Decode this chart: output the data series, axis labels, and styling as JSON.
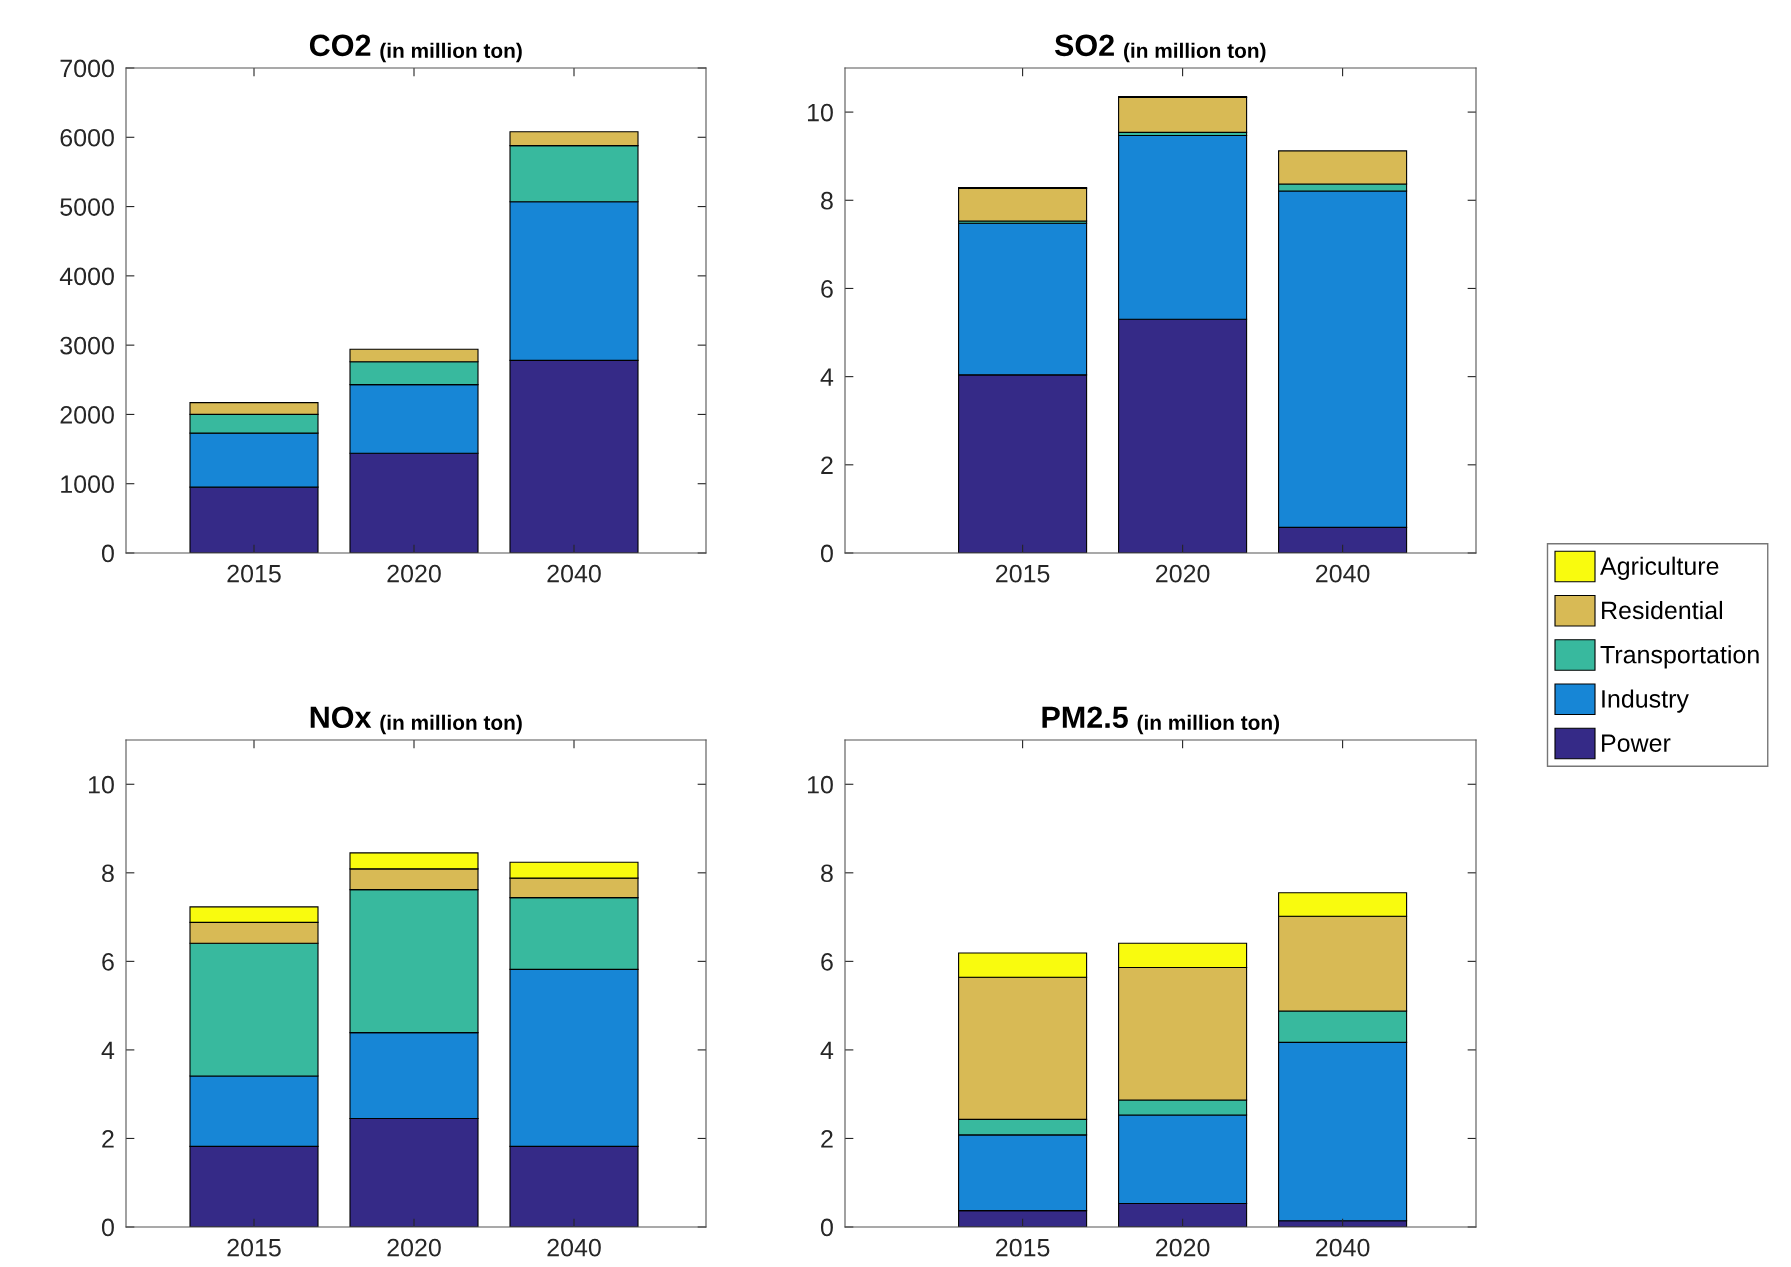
{
  "chart_data": [
    {
      "type": "bar",
      "stacked": true,
      "title": "CO2",
      "subtitle": "(in million ton)",
      "categories": [
        "2015",
        "2020",
        "2040"
      ],
      "ylim": [
        0,
        7000
      ],
      "yticks": [
        0,
        1000,
        2000,
        3000,
        4000,
        5000,
        6000,
        7000
      ],
      "grid": false,
      "legend": "right",
      "series": [
        {
          "name": "Power",
          "color": "#352a87",
          "values": [
            950,
            1440,
            2780
          ]
        },
        {
          "name": "Industry",
          "color": "#1786d6",
          "values": [
            780,
            990,
            2290
          ]
        },
        {
          "name": "Transportation",
          "color": "#38b99e",
          "values": [
            270,
            330,
            810
          ]
        },
        {
          "name": "Residential",
          "color": "#d8ba55",
          "values": [
            170,
            180,
            200
          ]
        },
        {
          "name": "Agriculture",
          "color": "#f9fb0e",
          "values": [
            null,
            null,
            null
          ]
        }
      ]
    },
    {
      "type": "bar",
      "stacked": true,
      "title": "SO2",
      "subtitle": "(in million ton)",
      "categories": [
        "2015",
        "2020",
        "2040"
      ],
      "ylim": [
        0,
        11
      ],
      "yticks": [
        0,
        2,
        4,
        6,
        8,
        10
      ],
      "grid": false,
      "series": [
        {
          "color": "#352a87",
          "values": [
            4.04,
            5.3,
            0.58
          ]
        },
        {
          "color": "#1786d6",
          "values": [
            3.44,
            4.17,
            7.63
          ]
        },
        {
          "color": "#38b99e",
          "values": [
            0.05,
            0.07,
            0.16
          ]
        },
        {
          "color": "#d8ba55",
          "values": [
            0.74,
            0.79,
            0.75
          ]
        },
        {
          "color": "#f9fb0e",
          "values": [
            0.02,
            0.02,
            null
          ]
        }
      ]
    },
    {
      "type": "bar",
      "stacked": true,
      "title": "NOx",
      "subtitle": "(in million ton)",
      "categories": [
        "2015",
        "2020",
        "2040"
      ],
      "ylim": [
        0,
        11
      ],
      "yticks": [
        0,
        2,
        4,
        6,
        8,
        10
      ],
      "grid": false,
      "series": [
        {
          "color": "#352a87",
          "values": [
            1.82,
            2.45,
            1.82
          ]
        },
        {
          "color": "#1786d6",
          "values": [
            1.59,
            1.94,
            4.0
          ]
        },
        {
          "color": "#38b99e",
          "values": [
            3.0,
            3.23,
            1.62
          ]
        },
        {
          "color": "#d8ba55",
          "values": [
            0.47,
            0.47,
            0.44
          ]
        },
        {
          "color": "#f9fb0e",
          "values": [
            0.35,
            0.36,
            0.36
          ]
        }
      ]
    },
    {
      "type": "bar",
      "stacked": true,
      "title": "PM2.5",
      "subtitle": "(in million ton)",
      "categories": [
        "2015",
        "2020",
        "2040"
      ],
      "ylim": [
        0,
        11
      ],
      "yticks": [
        0,
        2,
        4,
        6,
        8,
        10
      ],
      "grid": false,
      "series": [
        {
          "color": "#352a87",
          "values": [
            0.37,
            0.53,
            0.14
          ]
        },
        {
          "color": "#1786d6",
          "values": [
            1.71,
            2.0,
            4.03
          ]
        },
        {
          "color": "#38b99e",
          "values": [
            0.35,
            0.34,
            0.71
          ]
        },
        {
          "color": "#d8ba55",
          "values": [
            3.21,
            2.99,
            2.14
          ]
        },
        {
          "color": "#f9fb0e",
          "values": [
            0.55,
            0.55,
            0.53
          ]
        }
      ]
    }
  ]
}
